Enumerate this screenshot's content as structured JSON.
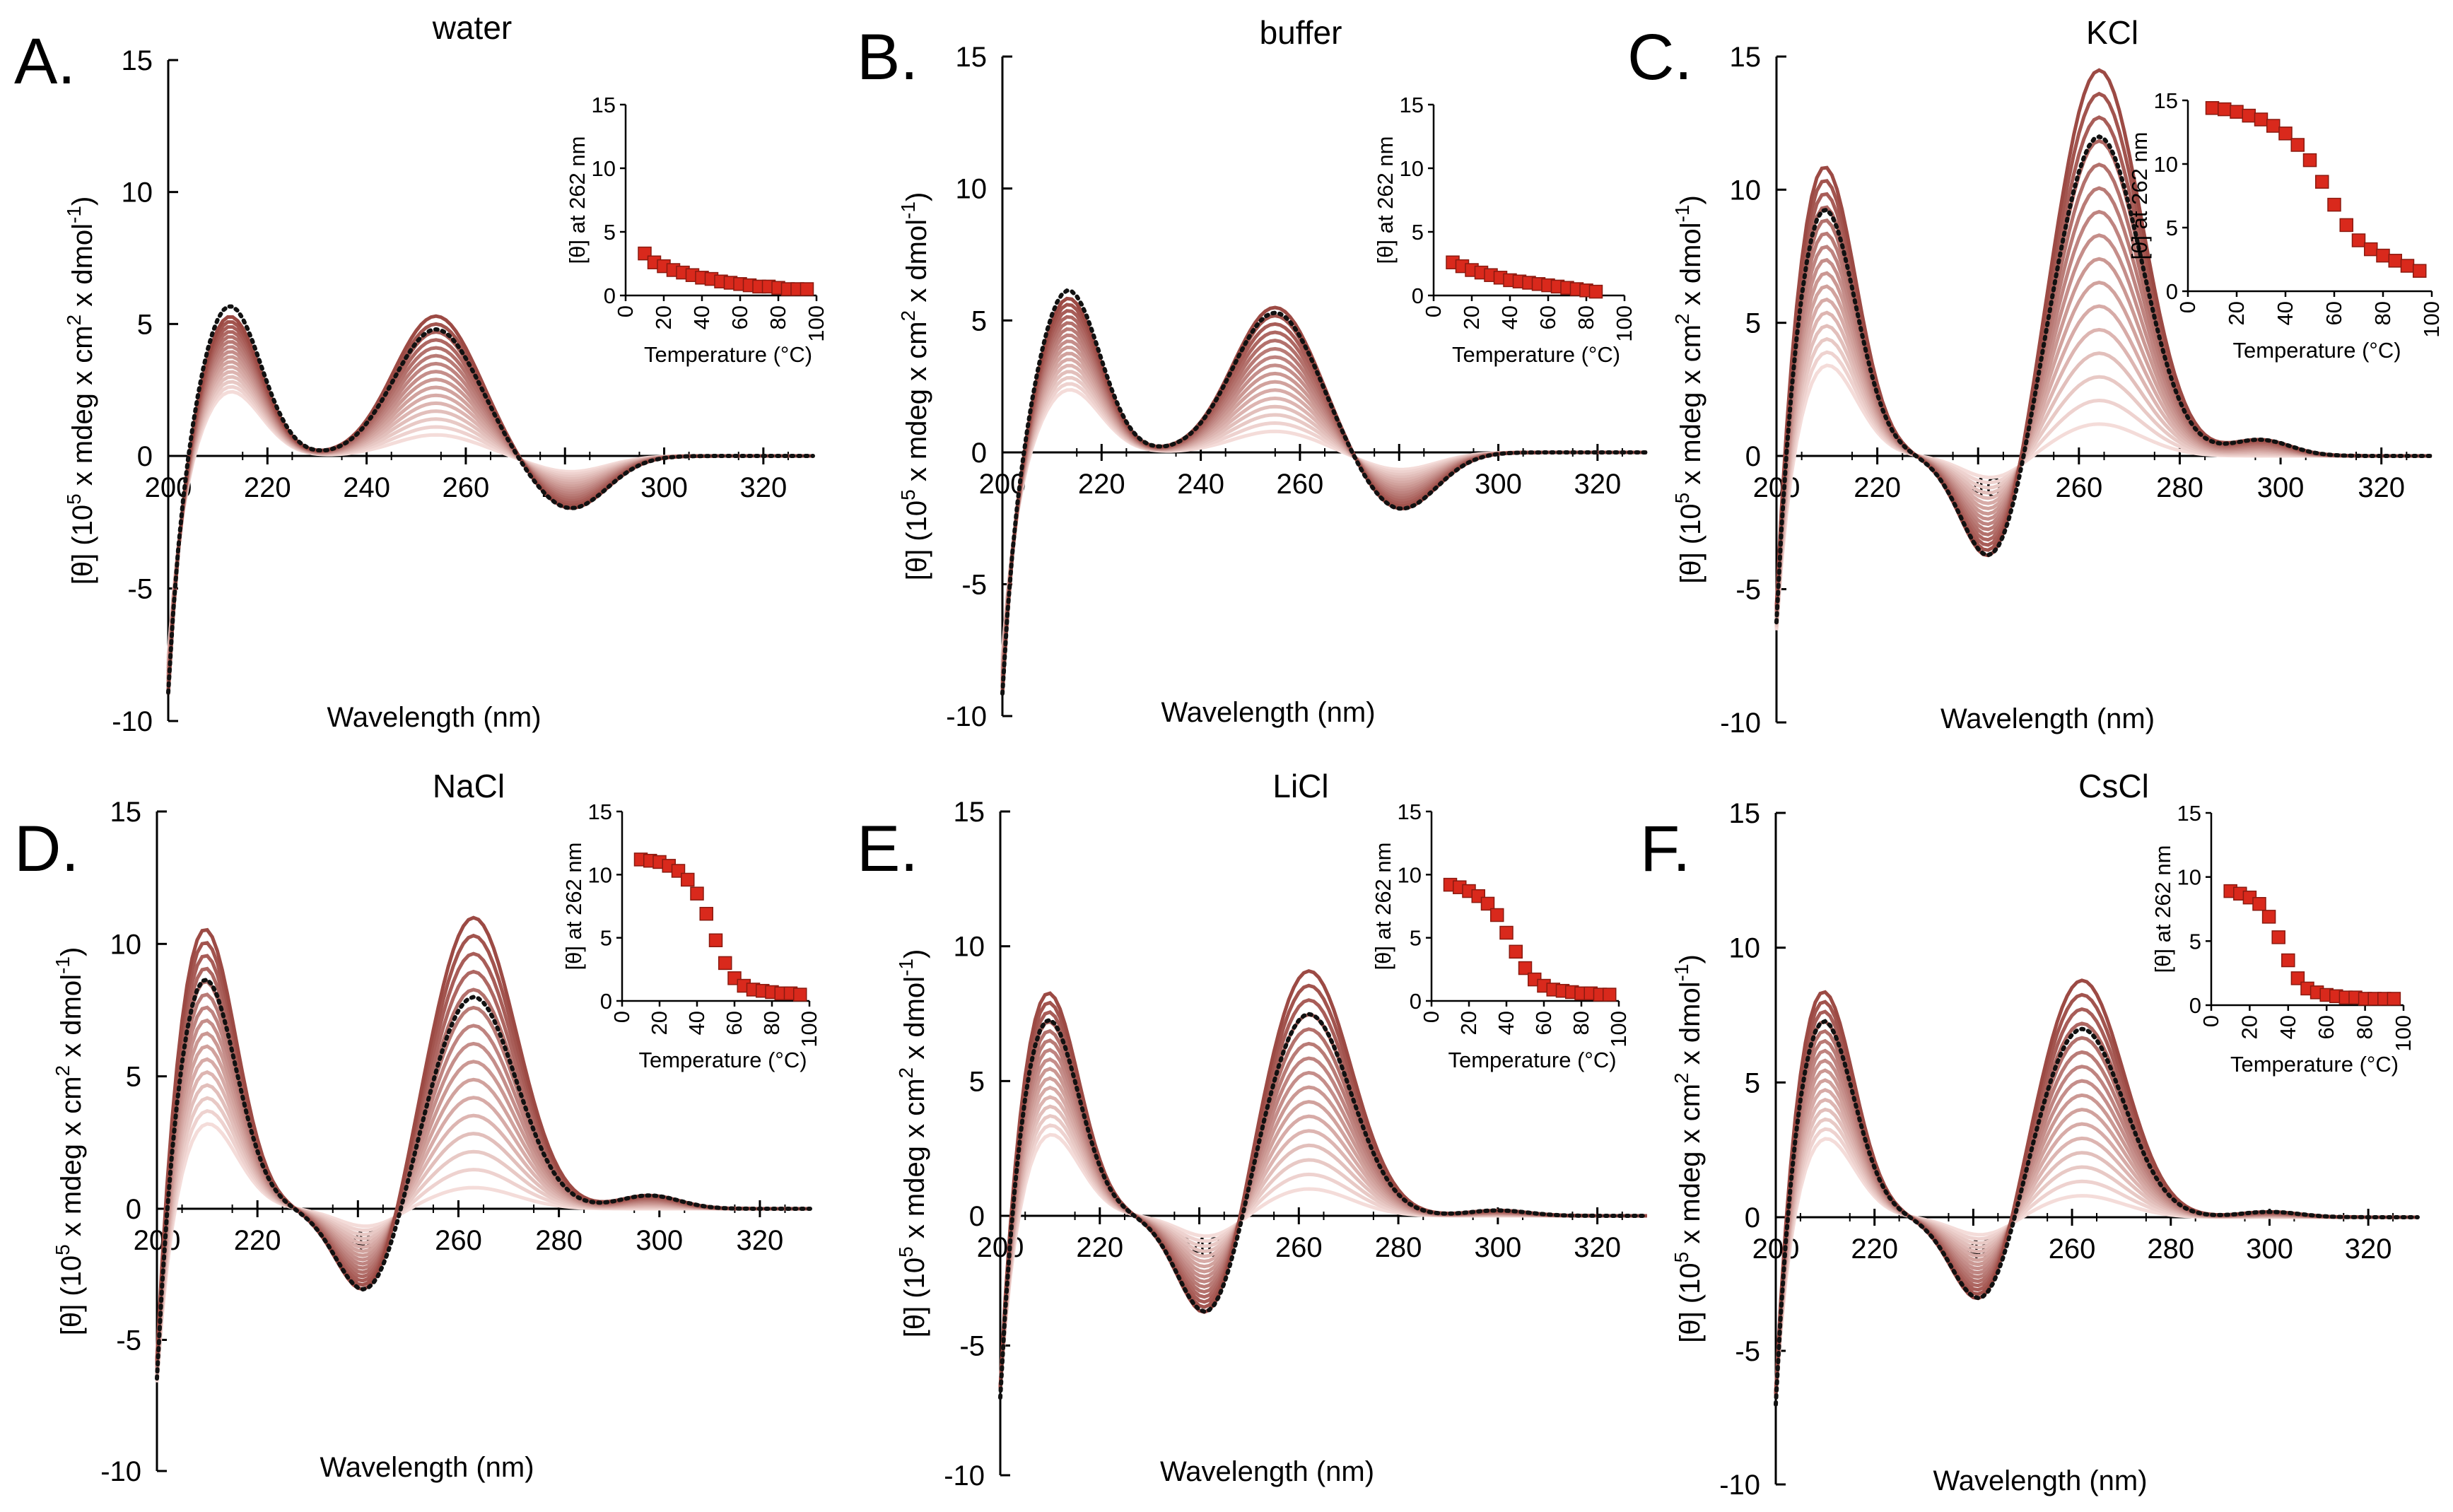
{
  "figure": {
    "curve_palette": {
      "low_temp": "#9c4a44",
      "high_temp": "#f4dcd9",
      "reference_dotted": "#111111",
      "melt_marker": "#d9291c",
      "melt_marker_edge": "#8a1a10"
    },
    "common": {
      "xlabel": "Wavelength (nm)",
      "ylabel_parts": [
        "[θ] (10",
        "5",
        " x mdeg x cm",
        "2",
        " x dmol",
        "-1",
        ")"
      ],
      "inset_xlabel": "Temperature (°C)",
      "inset_ylabel": "[θ] at 262 nm"
    }
  },
  "chart_data": [
    {
      "panel": "A.",
      "title": "water",
      "type": "line",
      "x_range": [
        200,
        330
      ],
      "x_ticks": [
        "200",
        "220",
        "240",
        "260",
        "280",
        "300",
        "320"
      ],
      "ylim": [
        -10,
        15
      ],
      "y_ticks": [
        "15",
        "10",
        "5",
        "0",
        "-5",
        "-10"
      ],
      "reference_peaks": {
        "peak1": {
          "x": 212,
          "y": 5.9
        },
        "trough1": {
          "x": 235,
          "y": 0.3
        },
        "peak2": {
          "x": 254,
          "y": 4.8
        },
        "trough2": {
          "x": 281,
          "y": -2.0
        }
      },
      "series_count": 16,
      "strong_peak1": 5.5,
      "weak_peak1": 2.6,
      "strong_peak2": 5.3,
      "weak_peak2": 0.8,
      "inset": {
        "type": "scatter",
        "xlim": [
          0,
          100
        ],
        "ylim": [
          0,
          15
        ],
        "x_ticks": [
          "0",
          "20",
          "40",
          "60",
          "80",
          "100"
        ],
        "y_ticks": [
          "15",
          "10",
          "5",
          "0"
        ],
        "x": [
          10,
          15,
          20,
          25,
          30,
          35,
          40,
          45,
          50,
          55,
          60,
          65,
          70,
          75,
          80,
          85,
          90,
          95
        ],
        "y": [
          3.3,
          2.6,
          2.3,
          2.0,
          1.8,
          1.6,
          1.4,
          1.3,
          1.1,
          1.0,
          0.9,
          0.8,
          0.7,
          0.7,
          0.6,
          0.5,
          0.5,
          0.5
        ]
      }
    },
    {
      "panel": "B.",
      "title": "buffer",
      "type": "line",
      "x_range": [
        200,
        330
      ],
      "x_ticks": [
        "200",
        "220",
        "240",
        "260",
        "280",
        "300",
        "320"
      ],
      "ylim": [
        -10,
        15
      ],
      "y_ticks": [
        "15",
        "10",
        "5",
        "0",
        "-5",
        "-10"
      ],
      "reference_peaks": {
        "peak1": {
          "x": 213,
          "y": 6.3
        },
        "trough1": {
          "x": 236,
          "y": 0.2
        },
        "peak2": {
          "x": 255,
          "y": 5.3
        },
        "trough2": {
          "x": 280,
          "y": -2.2
        }
      },
      "series_count": 16,
      "strong_peak1": 6.0,
      "weak_peak1": 2.5,
      "strong_peak2": 5.5,
      "weak_peak2": 0.8,
      "inset": {
        "type": "scatter",
        "xlim": [
          0,
          100
        ],
        "ylim": [
          0,
          15
        ],
        "x_ticks": [
          "0",
          "20",
          "40",
          "60",
          "80",
          "100"
        ],
        "y_ticks": [
          "15",
          "10",
          "5",
          "0"
        ],
        "x": [
          10,
          15,
          20,
          25,
          30,
          35,
          40,
          45,
          50,
          55,
          60,
          65,
          70,
          75,
          80,
          85
        ],
        "y": [
          2.6,
          2.3,
          2.0,
          1.8,
          1.6,
          1.4,
          1.2,
          1.1,
          1.0,
          0.9,
          0.8,
          0.7,
          0.6,
          0.5,
          0.4,
          0.3
        ]
      }
    },
    {
      "panel": "C.",
      "title": "KCl",
      "type": "line",
      "x_range": [
        200,
        330
      ],
      "x_ticks": [
        "200",
        "220",
        "240",
        "260",
        "280",
        "300",
        "320"
      ],
      "ylim": [
        -10,
        15
      ],
      "y_ticks": [
        "15",
        "10",
        "5",
        "0",
        "-5",
        "-10"
      ],
      "reference_peaks": {
        "peak1": {
          "x": 209,
          "y": 9.8
        },
        "trough1": {
          "x": 243,
          "y": -3.8
        },
        "peak2": {
          "x": 264,
          "y": 12.0
        },
        "shoulder": {
          "x": 296,
          "y": 0.6
        }
      },
      "series_count": 16,
      "strong_peak1": 11.4,
      "weak_peak1": 3.8,
      "strong_peak2": 14.5,
      "weak_peak2": 1.2,
      "inset": {
        "type": "scatter",
        "xlim": [
          0,
          100
        ],
        "ylim": [
          0,
          15
        ],
        "x_ticks": [
          "0",
          "20",
          "40",
          "60",
          "80",
          "100"
        ],
        "y_ticks": [
          "15",
          "10",
          "5",
          "0"
        ],
        "x": [
          10,
          15,
          20,
          25,
          30,
          35,
          40,
          45,
          50,
          55,
          60,
          65,
          70,
          75,
          80,
          85,
          90,
          95
        ],
        "y": [
          14.4,
          14.3,
          14.1,
          13.8,
          13.5,
          13.0,
          12.4,
          11.5,
          10.3,
          8.6,
          6.8,
          5.2,
          4.0,
          3.3,
          2.8,
          2.4,
          2.0,
          1.6
        ]
      }
    },
    {
      "panel": "D.",
      "title": "NaCl",
      "type": "line",
      "x_range": [
        200,
        330
      ],
      "x_ticks": [
        "200",
        "220",
        "240",
        "260",
        "280",
        "300",
        "320"
      ],
      "ylim": [
        -10,
        15
      ],
      "y_ticks": [
        "15",
        "10",
        "5",
        "0",
        "-5",
        "-10"
      ],
      "reference_peaks": {
        "peak1": {
          "x": 209,
          "y": 9.2
        },
        "trough1": {
          "x": 242,
          "y": -3.0
        },
        "peak2": {
          "x": 263,
          "y": 8.0
        },
        "shoulder": {
          "x": 298,
          "y": 0.5
        }
      },
      "series_count": 16,
      "strong_peak1": 11.1,
      "weak_peak1": 3.6,
      "strong_peak2": 11.0,
      "weak_peak2": 0.8,
      "inset": {
        "type": "scatter",
        "xlim": [
          0,
          100
        ],
        "ylim": [
          0,
          15
        ],
        "x_ticks": [
          "0",
          "20",
          "40",
          "60",
          "80",
          "100"
        ],
        "y_ticks": [
          "15",
          "10",
          "5",
          "0"
        ],
        "x": [
          10,
          15,
          20,
          25,
          30,
          35,
          40,
          45,
          50,
          55,
          60,
          65,
          70,
          75,
          80,
          85,
          90,
          95
        ],
        "y": [
          11.2,
          11.1,
          11.0,
          10.7,
          10.3,
          9.6,
          8.5,
          6.9,
          4.8,
          3.0,
          1.8,
          1.2,
          0.9,
          0.8,
          0.7,
          0.6,
          0.6,
          0.5
        ]
      }
    },
    {
      "panel": "E.",
      "title": "LiCl",
      "type": "line",
      "x_range": [
        200,
        330
      ],
      "x_ticks": [
        "200",
        "220",
        "240",
        "260",
        "280",
        "300",
        "320"
      ],
      "ylim": [
        -10,
        15
      ],
      "y_ticks": [
        "15",
        "10",
        "5",
        "0",
        "-5",
        "-10"
      ],
      "reference_peaks": {
        "peak1": {
          "x": 209,
          "y": 7.8
        },
        "trough1": {
          "x": 242,
          "y": -3.7
        },
        "peak2": {
          "x": 262,
          "y": 7.5
        },
        "shoulder": {
          "x": 300,
          "y": 0.2
        }
      },
      "series_count": 16,
      "strong_peak1": 8.8,
      "weak_peak1": 3.4,
      "strong_peak2": 9.1,
      "weak_peak2": 1.0,
      "inset": {
        "type": "scatter",
        "xlim": [
          0,
          100
        ],
        "ylim": [
          0,
          15
        ],
        "x_ticks": [
          "0",
          "20",
          "40",
          "60",
          "80",
          "100"
        ],
        "y_ticks": [
          "15",
          "10",
          "5",
          "0"
        ],
        "x": [
          10,
          15,
          20,
          25,
          30,
          35,
          40,
          45,
          50,
          55,
          60,
          65,
          70,
          75,
          80,
          85,
          90,
          95
        ],
        "y": [
          9.2,
          9.0,
          8.7,
          8.3,
          7.7,
          6.8,
          5.4,
          3.9,
          2.6,
          1.7,
          1.2,
          0.9,
          0.8,
          0.7,
          0.6,
          0.6,
          0.5,
          0.5
        ]
      }
    },
    {
      "panel": "F.",
      "title": "CsCl",
      "type": "line",
      "x_range": [
        200,
        330
      ],
      "x_ticks": [
        "200",
        "220",
        "240",
        "260",
        "280",
        "300",
        "320"
      ],
      "ylim": [
        -10,
        15
      ],
      "y_ticks": [
        "15",
        "10",
        "5",
        "0",
        "-5",
        "-10"
      ],
      "reference_peaks": {
        "peak1": {
          "x": 209,
          "y": 7.8
        },
        "trough1": {
          "x": 242,
          "y": -3.0
        },
        "peak2": {
          "x": 262,
          "y": 7.0
        },
        "shoulder": {
          "x": 300,
          "y": 0.2
        }
      },
      "series_count": 16,
      "strong_peak1": 8.9,
      "weak_peak1": 3.3,
      "strong_peak2": 8.8,
      "weak_peak2": 0.8,
      "inset": {
        "type": "scatter",
        "xlim": [
          0,
          100
        ],
        "ylim": [
          0,
          15
        ],
        "x_ticks": [
          "0",
          "20",
          "40",
          "60",
          "80",
          "100"
        ],
        "y_ticks": [
          "15",
          "10",
          "5",
          "0"
        ],
        "x": [
          10,
          15,
          20,
          25,
          30,
          35,
          40,
          45,
          50,
          55,
          60,
          65,
          70,
          75,
          80,
          85,
          90,
          95
        ],
        "y": [
          8.9,
          8.7,
          8.4,
          7.9,
          6.9,
          5.3,
          3.5,
          2.1,
          1.3,
          1.0,
          0.8,
          0.7,
          0.6,
          0.6,
          0.5,
          0.5,
          0.5,
          0.5
        ]
      }
    }
  ]
}
